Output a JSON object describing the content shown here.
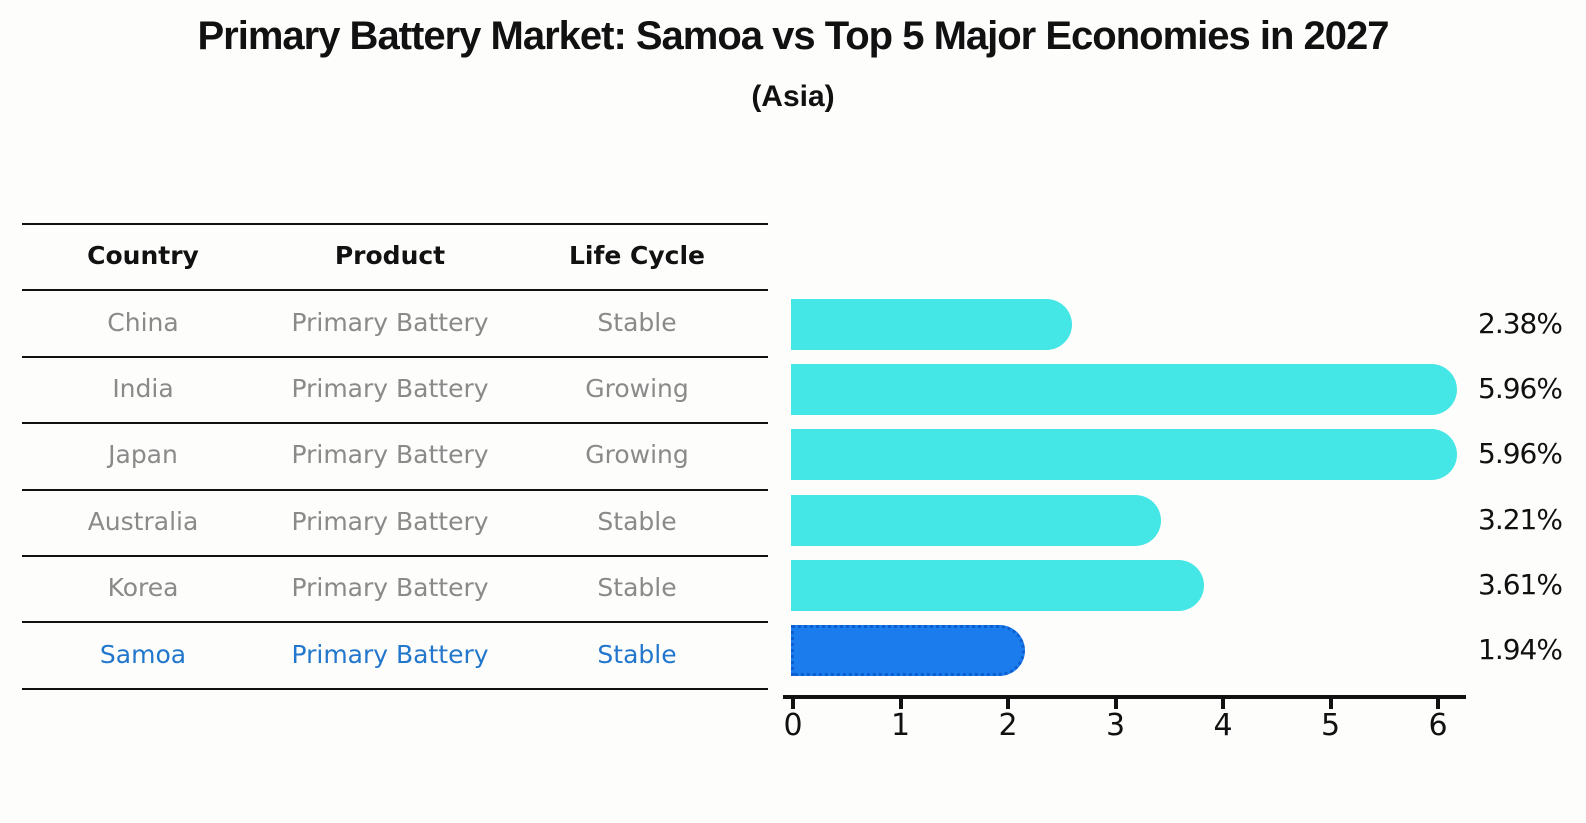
{
  "title": "Primary Battery Market: Samoa vs Top 5 Major Economies in 2027",
  "subtitle": "(Asia)",
  "table": {
    "headers": [
      "Country",
      "Product",
      "Life Cycle"
    ],
    "rows": [
      {
        "country": "China",
        "product": "Primary Battery",
        "life_cycle": "Stable",
        "highlight": false
      },
      {
        "country": "India",
        "product": "Primary Battery",
        "life_cycle": "Growing",
        "highlight": false
      },
      {
        "country": "Japan",
        "product": "Primary Battery",
        "life_cycle": "Growing",
        "highlight": false
      },
      {
        "country": "Australia",
        "product": "Primary Battery",
        "life_cycle": "Stable",
        "highlight": false
      },
      {
        "country": "Korea",
        "product": "Primary Battery",
        "life_cycle": "Stable",
        "highlight": false
      },
      {
        "country": "Samoa",
        "product": "Primary Battery",
        "life_cycle": "Stable",
        "highlight": true
      }
    ]
  },
  "chart_data": {
    "type": "bar",
    "orientation": "horizontal",
    "title": "Primary Battery Market: Samoa vs Top 5 Major Economies in 2027",
    "subtitle": "(Asia)",
    "categories": [
      "China",
      "India",
      "Japan",
      "Australia",
      "Korea",
      "Samoa"
    ],
    "values": [
      2.38,
      5.96,
      5.96,
      3.21,
      3.61,
      1.94
    ],
    "value_labels": [
      "2.38%",
      "5.96%",
      "5.96%",
      "3.21%",
      "3.61%",
      "1.94%"
    ],
    "x_ticks": [
      0,
      1,
      2,
      3,
      4,
      5,
      6
    ],
    "xlim": [
      0,
      6.25
    ],
    "grid": false,
    "legend": "none",
    "highlight_index": 5
  },
  "colors": {
    "bar": "#45E6E6",
    "highlight_bar": "#1B7CED",
    "highlight_border": "#0D5FD0",
    "highlight_text": "#2277CC",
    "row_text": "#8A8A8A",
    "axis_text": "#111111"
  }
}
